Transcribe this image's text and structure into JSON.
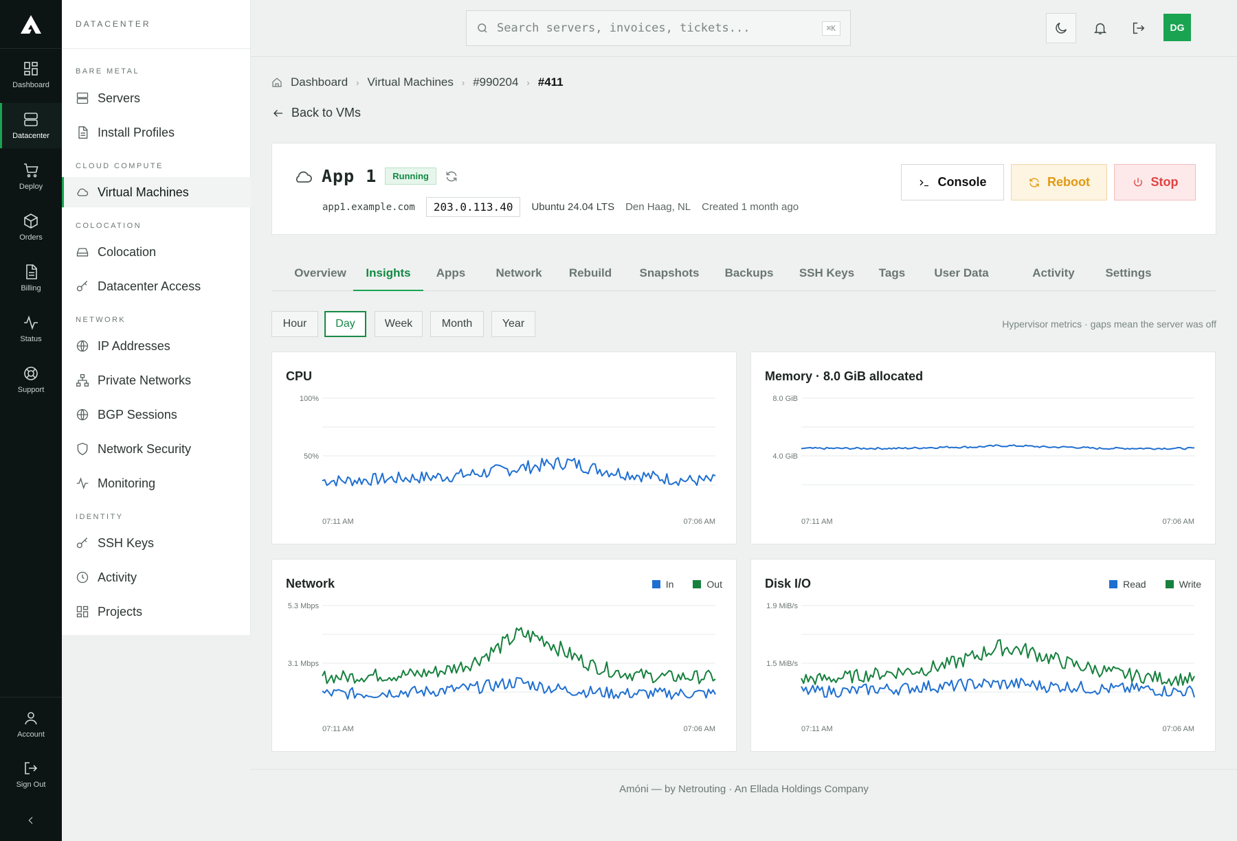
{
  "rail": {
    "items": [
      {
        "label": "Dashboard",
        "icon": "dashboard-icon"
      },
      {
        "label": "Datacenter",
        "icon": "server-icon"
      },
      {
        "label": "Deploy",
        "icon": "cart-icon"
      },
      {
        "label": "Orders",
        "icon": "box-icon"
      },
      {
        "label": "Billing",
        "icon": "document-icon"
      },
      {
        "label": "Status",
        "icon": "pulse-icon"
      },
      {
        "label": "Support",
        "icon": "lifebuoy-icon"
      }
    ],
    "account": "Account",
    "signout": "Sign Out"
  },
  "sidebar": {
    "header": "DATACENTER",
    "sections": {
      "bare_metal": "BARE METAL",
      "cloud": "CLOUD COMPUTE",
      "colo": "COLOCATION",
      "network": "NETWORK",
      "identity": "IDENTITY"
    },
    "items": {
      "servers": "Servers",
      "install": "Install Profiles",
      "vms": "Virtual Machines",
      "colocation": "Colocation",
      "dc_access": "Datacenter Access",
      "ip": "IP Addresses",
      "private": "Private Networks",
      "bgp": "BGP Sessions",
      "netsec": "Network Security",
      "monitoring": "Monitoring",
      "ssh": "SSH Keys",
      "activity": "Activity",
      "projects": "Projects"
    }
  },
  "topbar": {
    "search_placeholder": "Search servers, invoices, tickets...",
    "shortcut": "⌘K",
    "avatar": "DG"
  },
  "breadcrumb": [
    "Dashboard",
    "Virtual Machines",
    "#990204",
    "#411"
  ],
  "back_label": "Back to VMs",
  "vm": {
    "name": "App 1",
    "status": "Running",
    "hostname": "app1.example.com",
    "ip": "203.0.113.40",
    "os": "Ubuntu 24.04 LTS",
    "location": "Den Haag, NL",
    "created": "Created 1 month ago",
    "actions": {
      "console": "Console",
      "reboot": "Reboot",
      "stop": "Stop"
    }
  },
  "tabs": [
    "Overview",
    "Insights",
    "Apps",
    "Network",
    "Rebuild",
    "Snapshots",
    "Backups",
    "SSH Keys",
    "Tags",
    "User Data",
    "Activity",
    "Settings"
  ],
  "ranges": [
    "Hour",
    "Day",
    "Week",
    "Month",
    "Year"
  ],
  "hint": "Hypervisor metrics · gaps mean the server was off",
  "colors": {
    "accent": "#1aa351",
    "series_blue": "#1f6fd1",
    "series_green": "#16803d"
  },
  "chart_data": [
    {
      "type": "line",
      "title": "CPU",
      "y_ticks": [
        "100%",
        "50%"
      ],
      "x_ticks": [
        "07:11 AM",
        "07:06 AM"
      ],
      "ylim": [
        0,
        100
      ],
      "series": [
        {
          "color": "#1f6fd1",
          "profile": [
            20,
            20,
            21,
            22,
            23,
            24,
            26,
            29,
            32,
            35,
            38,
            32,
            28,
            25,
            22,
            20,
            20
          ]
        }
      ]
    },
    {
      "type": "line",
      "title": "Memory · 8.0 GiB allocated",
      "y_ticks": [
        "8.0 GiB",
        "4.0 GiB"
      ],
      "x_ticks": [
        "07:11 AM",
        "07:06 AM"
      ],
      "ylim": [
        0,
        8
      ],
      "series": [
        {
          "color": "#1f6fd1",
          "profile": [
            4.1,
            4.1,
            4.1,
            4.1,
            4.1,
            4.15,
            4.2,
            4.2,
            4.3,
            4.3,
            4.2,
            4.2,
            4.1,
            4.1,
            4.1,
            4.1,
            4.1
          ]
        }
      ]
    },
    {
      "type": "line",
      "title": "Network",
      "y_ticks": [
        "5.3 Mbps",
        "3.1 Mbps"
      ],
      "x_ticks": [
        "07:11 AM",
        "07:06 AM"
      ],
      "legend": [
        "In",
        "Out"
      ],
      "ylim": [
        0,
        6.2
      ],
      "series": [
        {
          "name": "In",
          "color": "#1f6fd1",
          "profile": [
            0.9,
            0.9,
            0.9,
            1.0,
            1.0,
            1.1,
            1.2,
            1.4,
            1.6,
            1.3,
            1.1,
            1.0,
            0.9,
            0.9,
            0.9,
            0.9,
            0.9
          ]
        },
        {
          "name": "Out",
          "color": "#16803d",
          "profile": [
            1.9,
            1.9,
            2.0,
            2.0,
            2.1,
            2.3,
            2.7,
            3.5,
            4.5,
            4.2,
            3.3,
            2.6,
            2.2,
            2.0,
            1.9,
            1.9,
            1.9
          ]
        }
      ]
    },
    {
      "type": "line",
      "title": "Disk I/O",
      "y_ticks": [
        "1.9 MiB/s",
        "1.5 MiB/s"
      ],
      "x_ticks": [
        "07:11 AM",
        "07:06 AM"
      ],
      "legend": [
        "Read",
        "Write"
      ],
      "ylim": [
        0,
        2.1
      ],
      "series": [
        {
          "name": "Read",
          "color": "#1f6fd1",
          "profile": [
            0.35,
            0.35,
            0.35,
            0.4,
            0.4,
            0.45,
            0.45,
            0.5,
            0.5,
            0.5,
            0.45,
            0.45,
            0.4,
            0.4,
            0.4,
            0.35,
            0.35
          ]
        },
        {
          "name": "Write",
          "color": "#16803d",
          "profile": [
            0.6,
            0.6,
            0.65,
            0.7,
            0.75,
            0.8,
            0.9,
            1.05,
            1.25,
            1.2,
            1.05,
            0.9,
            0.8,
            0.7,
            0.65,
            0.6,
            0.6
          ]
        }
      ]
    }
  ],
  "footer": "Amóni — by Netrouting · An Ellada Holdings Company"
}
